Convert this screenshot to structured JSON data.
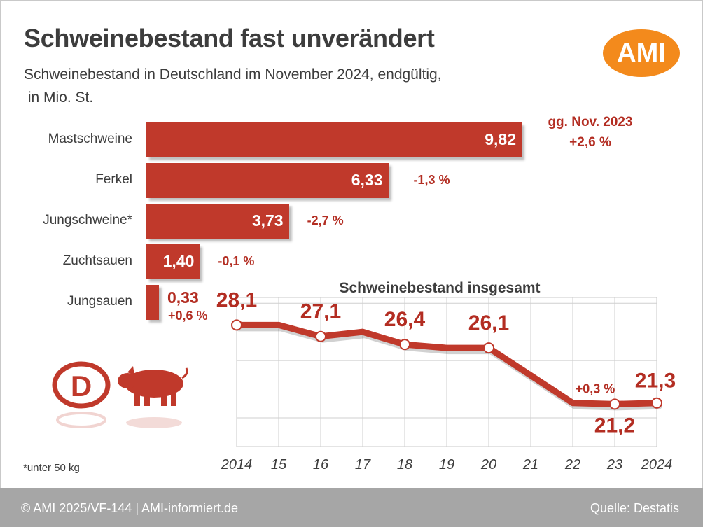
{
  "title": "Schweinebestand fast unverändert",
  "subtitle": "Schweinebestand in Deutschland im November 2024, endgültig,\n in Mio. St.",
  "logo": "AMI",
  "emblem_letter": "D",
  "reference_label": "gg. Nov. 2023",
  "footnote": "*unter 50 kg",
  "footer": {
    "left": "© AMI 2025/VF-144 | AMI-informiert.de",
    "right": "Quelle: Destatis"
  },
  "colors": {
    "bar": "#c0392b",
    "accent": "#b32d22",
    "logo": "#f38a1c",
    "footer": "#a6a6a6"
  },
  "chart_data": [
    {
      "type": "bar",
      "orientation": "horizontal",
      "categories": [
        "Mastschweine",
        "Ferkel",
        "Jungschweine*",
        "Zuchtsauen",
        "Jungsauen"
      ],
      "values": [
        9.82,
        6.33,
        3.73,
        1.4,
        0.33
      ],
      "value_labels": [
        "9,82",
        "6,33",
        "3,73",
        "1,40",
        "0,33"
      ],
      "change_vs_prev_year": [
        "+2,6 %",
        "-1,3 %",
        "-2,7 %",
        "-0,1 %",
        "+0,6 %"
      ],
      "xlim": [
        0,
        9.82
      ]
    },
    {
      "type": "line",
      "title": "Schweinebestand insgesamt",
      "x": [
        "2014",
        "15",
        "16",
        "17",
        "18",
        "19",
        "20",
        "21",
        "22",
        "23",
        "2024"
      ],
      "values": [
        28.1,
        28.1,
        27.1,
        27.5,
        26.4,
        26.1,
        26.1,
        23.7,
        21.3,
        21.2,
        21.3
      ],
      "point_labels": [
        {
          "index": 0,
          "text": "28,1"
        },
        {
          "index": 2,
          "text": "27,1"
        },
        {
          "index": 4,
          "text": "26,4"
        },
        {
          "index": 6,
          "text": "26,1"
        },
        {
          "index": 9,
          "text": "21,2"
        },
        {
          "index": 10,
          "text": "21,3"
        }
      ],
      "markers_at": [
        0,
        2,
        4,
        6,
        9,
        10
      ],
      "annotation": "+0,3 %",
      "ylim": [
        17.5,
        30.5
      ],
      "grid": true
    }
  ]
}
